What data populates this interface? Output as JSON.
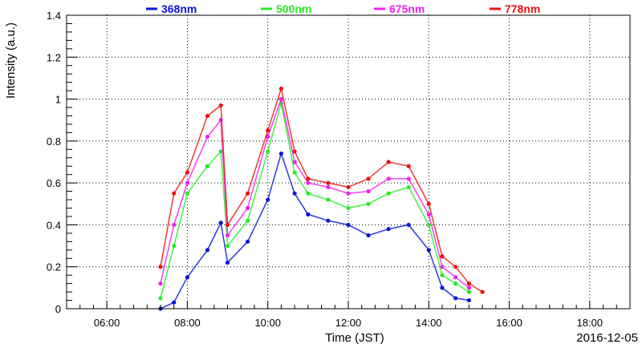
{
  "chart_data": {
    "type": "scatter",
    "title": "",
    "xlabel": "Time (JST)",
    "ylabel": "Intensity (a.u.)",
    "date_label": "2016-12-05",
    "xlim": [
      "05:00",
      "19:00"
    ],
    "ylim": [
      0,
      1.4
    ],
    "x_ticks": [
      "06:00",
      "08:00",
      "10:00",
      "12:00",
      "14:00",
      "16:00",
      "18:00"
    ],
    "y_ticks": [
      "0",
      "0.2",
      "0.4",
      "0.6",
      "0.8",
      "1",
      "1.2",
      "1.4"
    ],
    "grid": true,
    "legend_position": "top",
    "series": [
      {
        "name": "368nm",
        "color": "#0a14d8",
        "points": [
          [
            "07:20",
            0.0
          ],
          [
            "07:40",
            0.03
          ],
          [
            "08:00",
            0.15
          ],
          [
            "08:30",
            0.28
          ],
          [
            "08:50",
            0.41
          ],
          [
            "09:00",
            0.22
          ],
          [
            "09:30",
            0.32
          ],
          [
            "10:00",
            0.52
          ],
          [
            "10:20",
            0.74
          ],
          [
            "10:40",
            0.55
          ],
          [
            "11:00",
            0.45
          ],
          [
            "11:30",
            0.42
          ],
          [
            "12:00",
            0.4
          ],
          [
            "12:30",
            0.35
          ],
          [
            "13:00",
            0.38
          ],
          [
            "13:30",
            0.4
          ],
          [
            "14:00",
            0.28
          ],
          [
            "14:20",
            0.1
          ],
          [
            "14:40",
            0.05
          ],
          [
            "15:00",
            0.04
          ]
        ]
      },
      {
        "name": "500nm",
        "color": "#22ee22",
        "points": [
          [
            "07:20",
            0.05
          ],
          [
            "07:40",
            0.3
          ],
          [
            "08:00",
            0.55
          ],
          [
            "08:30",
            0.68
          ],
          [
            "08:50",
            0.75
          ],
          [
            "09:00",
            0.3
          ],
          [
            "09:30",
            0.42
          ],
          [
            "10:00",
            0.75
          ],
          [
            "10:20",
            0.98
          ],
          [
            "10:40",
            0.65
          ],
          [
            "11:00",
            0.55
          ],
          [
            "11:30",
            0.52
          ],
          [
            "12:00",
            0.48
          ],
          [
            "12:30",
            0.5
          ],
          [
            "13:00",
            0.55
          ],
          [
            "13:30",
            0.58
          ],
          [
            "14:00",
            0.4
          ],
          [
            "14:20",
            0.16
          ],
          [
            "14:40",
            0.12
          ],
          [
            "15:00",
            0.08
          ]
        ]
      },
      {
        "name": "675nm",
        "color": "#ee22ee",
        "points": [
          [
            "07:20",
            0.12
          ],
          [
            "07:40",
            0.4
          ],
          [
            "08:00",
            0.6
          ],
          [
            "08:30",
            0.82
          ],
          [
            "08:50",
            0.9
          ],
          [
            "09:00",
            0.35
          ],
          [
            "09:30",
            0.48
          ],
          [
            "10:00",
            0.82
          ],
          [
            "10:20",
            1.0
          ],
          [
            "10:40",
            0.7
          ],
          [
            "11:00",
            0.6
          ],
          [
            "11:30",
            0.58
          ],
          [
            "12:00",
            0.55
          ],
          [
            "12:30",
            0.56
          ],
          [
            "13:00",
            0.62
          ],
          [
            "13:30",
            0.62
          ],
          [
            "14:00",
            0.45
          ],
          [
            "14:20",
            0.2
          ],
          [
            "14:40",
            0.15
          ],
          [
            "15:00",
            0.1
          ]
        ]
      },
      {
        "name": "778nm",
        "color": "#ee1111",
        "points": [
          [
            "07:20",
            0.2
          ],
          [
            "07:40",
            0.55
          ],
          [
            "08:00",
            0.65
          ],
          [
            "08:30",
            0.92
          ],
          [
            "08:50",
            0.97
          ],
          [
            "09:00",
            0.4
          ],
          [
            "09:30",
            0.55
          ],
          [
            "10:00",
            0.85
          ],
          [
            "10:20",
            1.05
          ],
          [
            "10:40",
            0.75
          ],
          [
            "11:00",
            0.62
          ],
          [
            "11:30",
            0.6
          ],
          [
            "12:00",
            0.58
          ],
          [
            "12:30",
            0.62
          ],
          [
            "13:00",
            0.7
          ],
          [
            "13:30",
            0.68
          ],
          [
            "14:00",
            0.5
          ],
          [
            "14:20",
            0.25
          ],
          [
            "14:40",
            0.2
          ],
          [
            "15:00",
            0.12
          ],
          [
            "15:20",
            0.08
          ]
        ]
      }
    ]
  }
}
